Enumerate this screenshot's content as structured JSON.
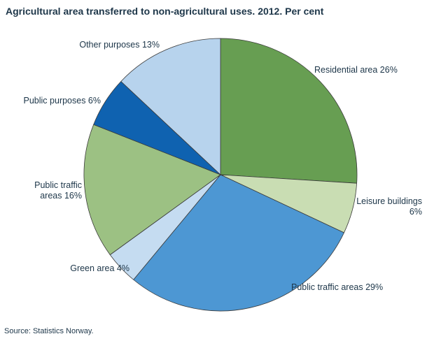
{
  "title": "Agricultural area transferred to non-agricultural uses. 2012. Per cent",
  "source": "Source: Statistics Norway.",
  "chart_data": {
    "type": "pie",
    "title": "Agricultural area transferred to non-agricultural uses. 2012. Per cent",
    "start_angle_deg": 0,
    "direction": "clockwise",
    "legend_position": "outside-labels",
    "slices": [
      {
        "label": "Residential area",
        "value": 26,
        "color": "#679e52",
        "display": "Residential area 26%"
      },
      {
        "label": "Leisure buildings",
        "value": 6,
        "color": "#c9ddb3",
        "display": "Leisure buildings 6%"
      },
      {
        "label": "Public traffic areas",
        "value": 29,
        "color": "#4d97d3",
        "display": "Public traffic areas 29%"
      },
      {
        "label": "Green area",
        "value": 4,
        "color": "#c5dcf1",
        "display": "Green area 4%"
      },
      {
        "label": "Public traffic areas",
        "value": 16,
        "color": "#9cc183",
        "display": "Public traffic areas 16%"
      },
      {
        "label": "Public purposes",
        "value": 6,
        "color": "#0f62b0",
        "display": "Public purposes 6%"
      },
      {
        "label": "Other purposes",
        "value": 13,
        "color": "#b7d3ed",
        "display": "Other purposes 13%"
      }
    ]
  },
  "labels": {
    "other_purposes": "Other purposes 13%",
    "public_purposes": "Public purposes 6%",
    "public_traffic_16_line1": "Public traffic",
    "public_traffic_16_line2": "areas 16%",
    "green_area": "Green area 4%",
    "public_traffic_29": "Public traffic areas 29%",
    "leisure_line1": "Leisure buildings",
    "leisure_line2": "6%",
    "residential": "Residential area 26%"
  }
}
